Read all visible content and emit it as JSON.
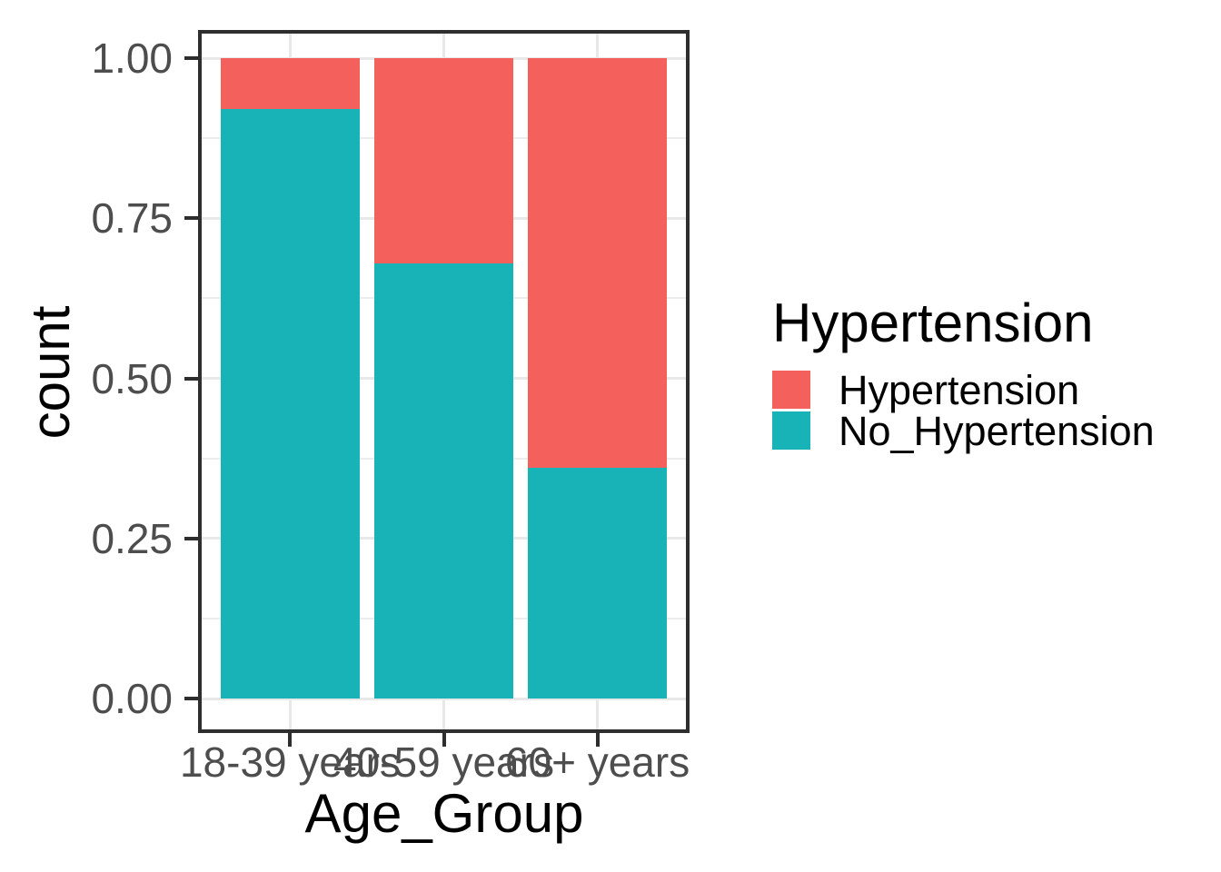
{
  "chart_data": {
    "type": "bar",
    "stacked": "fill",
    "orientation": "vertical",
    "title": "",
    "xlabel": "Age_Group",
    "ylabel": "count",
    "categories": [
      "18-39 years",
      "40-59 years",
      "60+ years"
    ],
    "series": [
      {
        "name": "Hypertension",
        "color": "#F4605C",
        "values": [
          0.08,
          0.32,
          0.64
        ]
      },
      {
        "name": "No_Hypertension",
        "color": "#17B3B7",
        "values": [
          0.92,
          0.68,
          0.36
        ]
      }
    ],
    "ylim": [
      0,
      1
    ],
    "y_ticks": [
      {
        "value": 0.0,
        "label": "0.00"
      },
      {
        "value": 0.25,
        "label": "0.25"
      },
      {
        "value": 0.5,
        "label": "0.50"
      },
      {
        "value": 0.75,
        "label": "0.75"
      },
      {
        "value": 1.0,
        "label": "1.00"
      }
    ],
    "minor_grid_y": [
      0.125,
      0.375,
      0.625,
      0.875
    ],
    "legend": {
      "title": "Hypertension",
      "position": "right",
      "entries": [
        {
          "label": "Hypertension",
          "color": "#F4605C"
        },
        {
          "label": "No_Hypertension",
          "color": "#17B3B7"
        }
      ]
    },
    "grid": true
  },
  "colors": {
    "hypertension": "#F4605C",
    "no_hypertension": "#17B3B7",
    "axis_text": "#4D4D4D",
    "title_text": "#000000",
    "panel_border": "#2E2E2E",
    "grid_major": "#E8E8E8",
    "grid_minor": "#EDEDED",
    "background": "#FFFFFF"
  }
}
